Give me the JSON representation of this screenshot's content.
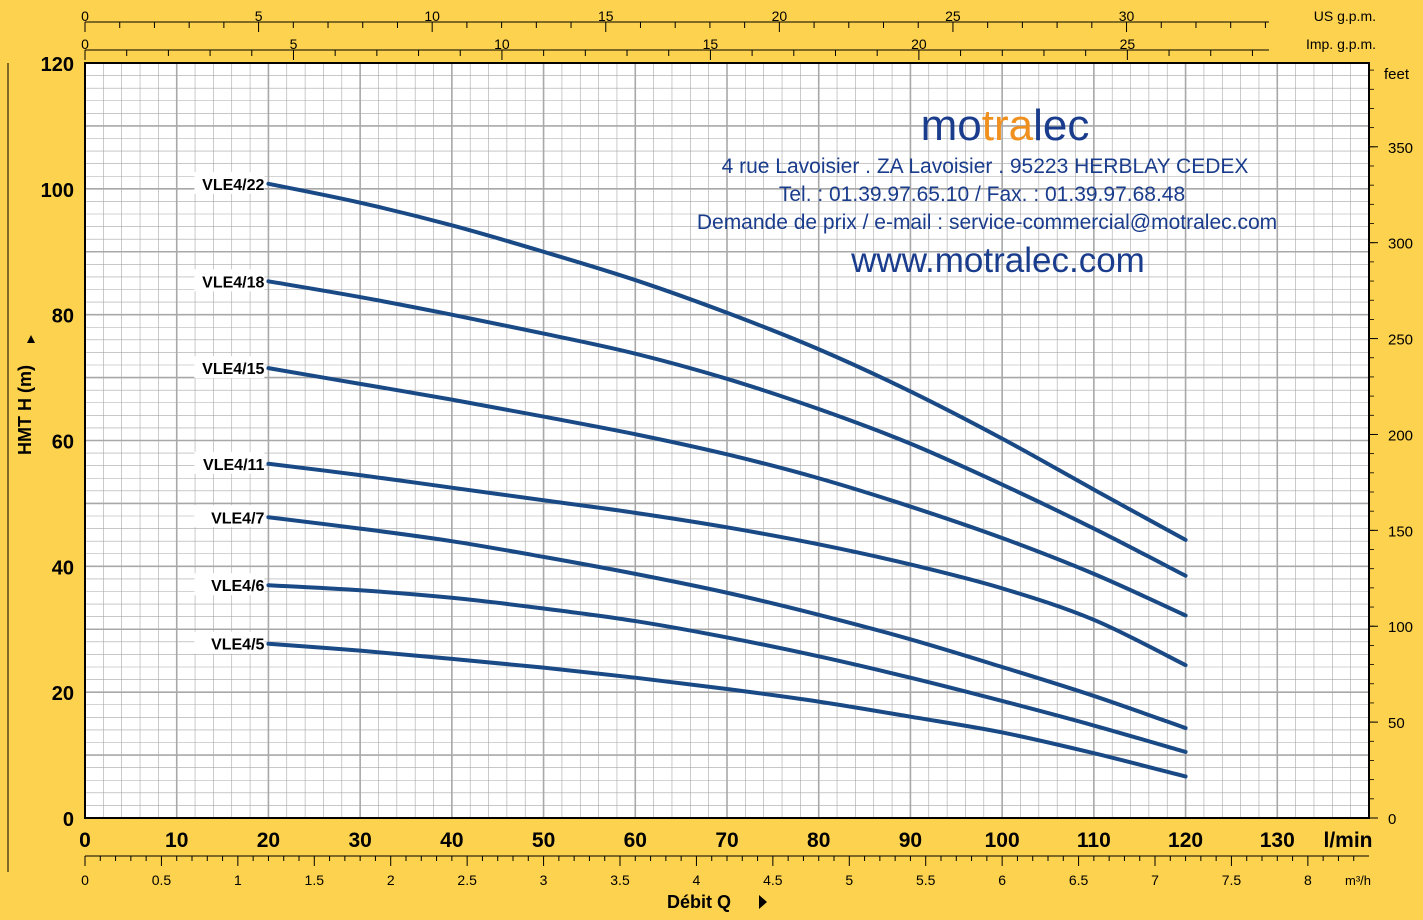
{
  "colors": {
    "background": "#fdd24e",
    "plot_background": "#ffffff",
    "grid": "#a8a8a8",
    "curve": "#1a4a86",
    "brand_blue": "#1a3c8c",
    "brand_orange": "#f0901e",
    "text": "#000000"
  },
  "branding": {
    "logo_part1": "mo",
    "logo_part2": "tra",
    "logo_part3": "lec",
    "address": "4 rue Lavoisier . ZA Lavoisier . 95223 HERBLAY CEDEX",
    "phone": "Tel. : 01.39.97.65.10 / Fax. : 01.39.97.68.48",
    "email": "Demande de prix / e-mail : service-commercial@motralec.com",
    "website": "www.motralec.com"
  },
  "axes": {
    "us_gpm_label": "US g.p.m.",
    "imp_gpm_label": "Imp. g.p.m.",
    "feet_label": "feet",
    "lmin_label": "l/min",
    "m3h_label": "m³/h",
    "ylabel": "HMT H (m)",
    "xlabel": "Débit Q"
  },
  "chart_data": {
    "type": "line",
    "title": "",
    "xlabel": "Débit Q",
    "ylabel": "HMT H (m)",
    "x_unit": "l/min",
    "xlim": [
      0,
      140
    ],
    "ylim": [
      0,
      120
    ],
    "grid": true,
    "x_ticks": [
      0,
      10,
      20,
      30,
      40,
      50,
      60,
      70,
      80,
      90,
      100,
      110,
      120,
      130
    ],
    "y_ticks": [
      0,
      20,
      40,
      60,
      80,
      100,
      120
    ],
    "secondary_axes": {
      "us_gpm": {
        "label": "US g.p.m.",
        "ticks": [
          0,
          5,
          10,
          15,
          20,
          25,
          30
        ]
      },
      "imp_gpm": {
        "label": "Imp. g.p.m.",
        "ticks": [
          0,
          5,
          10,
          15,
          20,
          25
        ]
      },
      "m3h": {
        "label": "m³/h",
        "ticks": [
          "0",
          "0.5",
          "1",
          "1.5",
          "2",
          "2.5",
          "3",
          "3.5",
          "4",
          "4.5",
          "5",
          "5.5",
          "6",
          "6.5",
          "7",
          "7.5",
          "8"
        ]
      },
      "feet": {
        "label": "feet",
        "ticks": [
          0,
          50,
          100,
          150,
          200,
          250,
          300,
          350
        ]
      }
    },
    "x": [
      20,
      30,
      40,
      50,
      60,
      70,
      80,
      90,
      100,
      110,
      120
    ],
    "series": [
      {
        "name": "VLE4/22",
        "values": [
          100.8,
          97.8,
          94.2,
          90.0,
          85.5,
          80.3,
          74.5,
          67.8,
          60.3,
          52.2,
          44.2
        ]
      },
      {
        "name": "VLE4/18",
        "values": [
          85.3,
          82.8,
          80.0,
          77.0,
          73.8,
          69.8,
          65.0,
          59.5,
          53.0,
          46.0,
          38.5
        ]
      },
      {
        "name": "VLE4/15",
        "values": [
          71.5,
          69.0,
          66.5,
          63.8,
          61.0,
          57.8,
          54.0,
          49.5,
          44.5,
          38.8,
          32.2
        ]
      },
      {
        "name": "VLE4/11",
        "values": [
          56.3,
          54.5,
          52.5,
          50.5,
          48.5,
          46.2,
          43.5,
          40.3,
          36.5,
          31.5,
          24.3
        ]
      },
      {
        "name": "VLE4/7",
        "values": [
          47.8,
          46.0,
          44.0,
          41.5,
          38.8,
          35.8,
          32.3,
          28.4,
          24.0,
          19.4,
          14.3
        ]
      },
      {
        "name": "VLE4/6",
        "values": [
          37.0,
          36.2,
          35.0,
          33.3,
          31.3,
          28.7,
          25.7,
          22.3,
          18.6,
          14.7,
          10.5
        ]
      },
      {
        "name": "VLE4/5",
        "values": [
          27.7,
          26.6,
          25.3,
          23.9,
          22.3,
          20.5,
          18.5,
          16.1,
          13.6,
          10.3,
          6.6
        ]
      }
    ]
  }
}
